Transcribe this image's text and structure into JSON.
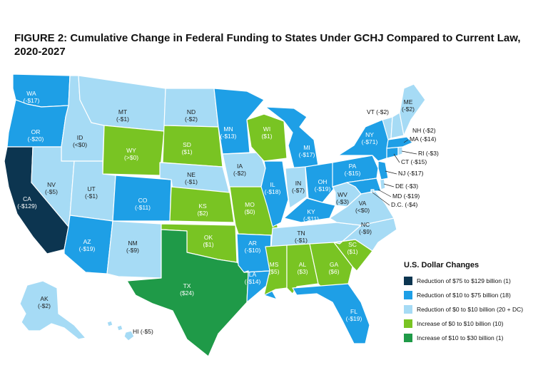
{
  "title": "FIGURE 2: Cumulative Change in Federal Funding to States Under GCHJ Compared to Current Law, 2020-2027",
  "colors": {
    "c1": "#0c3550",
    "c2": "#1e9fe6",
    "c3": "#a6dbf5",
    "c4": "#79c423",
    "c5": "#1f9a48"
  },
  "legend": {
    "title": "U.S. Dollar Changes",
    "items": [
      {
        "label": "Reduction of $75 to $129 billion (1)",
        "color": "#0c3550"
      },
      {
        "label": "Reduction of $10 to $75 billion (18)",
        "color": "#1e9fe6"
      },
      {
        "label": "Reduction of $0 to $10 billion (20 + DC)",
        "color": "#a6dbf5"
      },
      {
        "label": "Increase of $0 to $10 billion (10)",
        "color": "#79c423"
      },
      {
        "label": "Increase of $10 to $30 billion (1)",
        "color": "#1f9a48"
      }
    ]
  },
  "states": {
    "WA": {
      "name": "WA",
      "value": "(-$17)",
      "category": "c2"
    },
    "OR": {
      "name": "OR",
      "value": "(-$20)",
      "category": "c2"
    },
    "CA": {
      "name": "CA",
      "value": "(-$129)",
      "category": "c1"
    },
    "ID": {
      "name": "ID",
      "value": "(<$0)",
      "category": "c3"
    },
    "NV": {
      "name": "NV",
      "value": "(-$5)",
      "category": "c3"
    },
    "MT": {
      "name": "MT",
      "value": "(-$1)",
      "category": "c3"
    },
    "WY": {
      "name": "WY",
      "value": "(>$0)",
      "category": "c4"
    },
    "UT": {
      "name": "UT",
      "value": "(-$1)",
      "category": "c3"
    },
    "AZ": {
      "name": "AZ",
      "value": "(-$19)",
      "category": "c2"
    },
    "CO": {
      "name": "CO",
      "value": "(-$11)",
      "category": "c2"
    },
    "NM": {
      "name": "NM",
      "value": "(-$9)",
      "category": "c3"
    },
    "ND": {
      "name": "ND",
      "value": "(-$2)",
      "category": "c3"
    },
    "SD": {
      "name": "SD",
      "value": "($1)",
      "category": "c4"
    },
    "NE": {
      "name": "NE",
      "value": "(-$1)",
      "category": "c3"
    },
    "KS": {
      "name": "KS",
      "value": "($2)",
      "category": "c4"
    },
    "OK": {
      "name": "OK",
      "value": "($1)",
      "category": "c4"
    },
    "TX": {
      "name": "TX",
      "value": "($24)",
      "category": "c5"
    },
    "MN": {
      "name": "MN",
      "value": "(-$13)",
      "category": "c2"
    },
    "IA": {
      "name": "IA",
      "value": "(-$2)",
      "category": "c3"
    },
    "MO": {
      "name": "MO",
      "value": "($0)",
      "category": "c4"
    },
    "AR": {
      "name": "AR",
      "value": "(-$10)",
      "category": "c2"
    },
    "LA": {
      "name": "LA",
      "value": "(-$14)",
      "category": "c2"
    },
    "WI": {
      "name": "WI",
      "value": "($1)",
      "category": "c4"
    },
    "IL": {
      "name": "IL",
      "value": "(-$18)",
      "category": "c2"
    },
    "MI": {
      "name": "MI",
      "value": "(-$17)",
      "category": "c2"
    },
    "IN": {
      "name": "IN",
      "value": "(-$7)",
      "category": "c3"
    },
    "OH": {
      "name": "OH",
      "value": "(-$19)",
      "category": "c2"
    },
    "KY": {
      "name": "KY",
      "value": "(-$11)",
      "category": "c2"
    },
    "TN": {
      "name": "TN",
      "value": "(-$1)",
      "category": "c3"
    },
    "MS": {
      "name": "MS",
      "value": "($5)",
      "category": "c4"
    },
    "AL": {
      "name": "AL",
      "value": "($3)",
      "category": "c4"
    },
    "GA": {
      "name": "GA",
      "value": "($6)",
      "category": "c4"
    },
    "FL": {
      "name": "FL",
      "value": "(-$19)",
      "category": "c2"
    },
    "SC": {
      "name": "SC",
      "value": "($1)",
      "category": "c4"
    },
    "NC": {
      "name": "NC",
      "value": "(-$9)",
      "category": "c3"
    },
    "VA": {
      "name": "VA",
      "value": "(<$0)",
      "category": "c3"
    },
    "WV": {
      "name": "WV",
      "value": "(-$3)",
      "category": "c3"
    },
    "PA": {
      "name": "PA",
      "value": "(-$15)",
      "category": "c2"
    },
    "NY": {
      "name": "NY",
      "value": "(-$71)",
      "category": "c2"
    },
    "VT": {
      "name": "VT",
      "value": "(-$2)",
      "category": "c3"
    },
    "NH": {
      "name": "NH",
      "value": "(-$2)",
      "category": "c3"
    },
    "ME": {
      "name": "ME",
      "value": "(-$2)",
      "category": "c3"
    },
    "MA": {
      "name": "MA",
      "value": "(-$14)",
      "category": "c2"
    },
    "RI": {
      "name": "RI",
      "value": "(-$3)",
      "category": "c3"
    },
    "CT": {
      "name": "CT",
      "value": "(-$15)",
      "category": "c2"
    },
    "NJ": {
      "name": "NJ",
      "value": "(-$17)",
      "category": "c2"
    },
    "DE": {
      "name": "DE",
      "value": "(-$3)",
      "category": "c3"
    },
    "MD": {
      "name": "MD",
      "value": "(-$19)",
      "category": "c2"
    },
    "DC": {
      "name": "D.C.",
      "value": "(-$4)",
      "category": "c3"
    },
    "AK": {
      "name": "AK",
      "value": "(-$2)",
      "category": "c3"
    },
    "HI": {
      "name": "HI",
      "value": "(-$5)",
      "category": "c3"
    }
  }
}
